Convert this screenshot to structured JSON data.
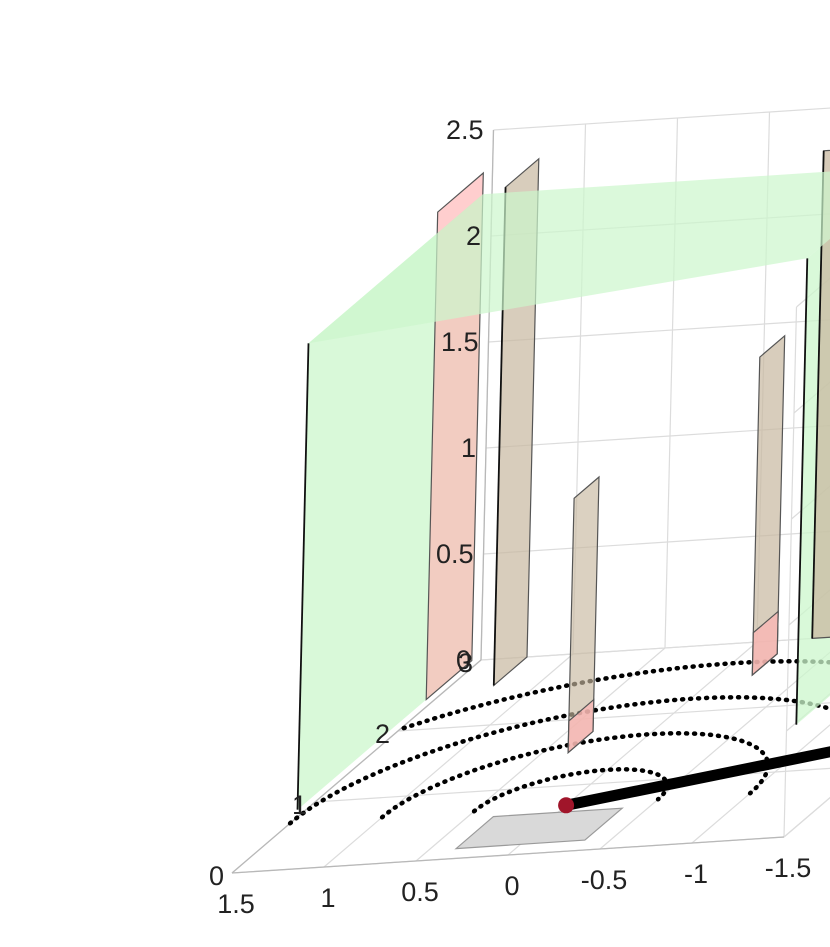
{
  "chart_data": {
    "type": "3d-scene",
    "title": "",
    "xlabel": "",
    "ylabel": "",
    "zlabel": "",
    "grid": true,
    "xlim": [
      -1.5,
      1.5
    ],
    "ylim": [
      0,
      3
    ],
    "zlim": [
      0,
      2.5
    ],
    "x_ticks": [
      "1.5",
      "1",
      "0.5",
      "0",
      "-0.5",
      "-1",
      "-1.5"
    ],
    "y_ticks": [
      "0",
      "1",
      "2",
      "3"
    ],
    "z_ticks": [
      "0",
      "0.5",
      "1",
      "1.5",
      "2",
      "2.5"
    ],
    "colors": {
      "corridor_fill": "#ccf7cc",
      "red_panel": "#ffb3b3",
      "tan_panel": "#c8b8a0",
      "floor_square": "#d9d9d9",
      "robot_point": "#a0152a",
      "arm_line": "#000000",
      "ring_dots": "#000000"
    },
    "rings": [
      0.5,
      1.0,
      1.5,
      2.0
    ],
    "robot_point": [
      0,
      0.7,
      0
    ],
    "arm_segment": [
      [
        0,
        0.7,
        0
      ],
      [
        -1.5,
        1.4,
        0
      ]
    ]
  }
}
